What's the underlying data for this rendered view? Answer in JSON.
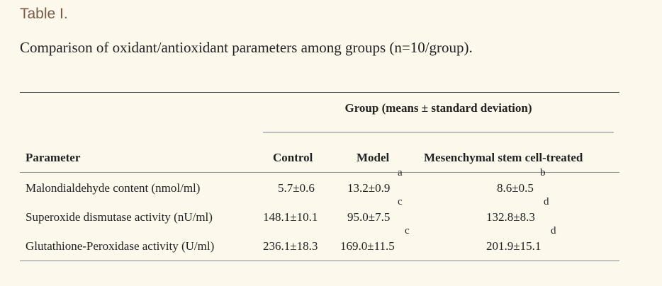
{
  "table_label": "Table I.",
  "caption": "Comparison of oxidant/antioxidant parameters among groups (n=10/group).",
  "group_header": "Group (means ± standard deviation)",
  "columns": [
    "Parameter",
    "Control",
    "Model",
    "Mesenchymal stem cell-treated"
  ],
  "rows": [
    {
      "parameter": "Malondialdehyde content (nmol/ml)",
      "control": "5.7±0.6",
      "model": "13.2±0.9",
      "model_sup": "a",
      "treated": "8.6±0.5",
      "treated_sup": "b"
    },
    {
      "parameter": "Superoxide dismutase activity (nU/ml)",
      "control": "148.1±10.1",
      "model": "95.0±7.5",
      "model_sup": "c",
      "treated": "132.8±8.3",
      "treated_sup": "d"
    },
    {
      "parameter": "Glutathione-Peroxidase activity (U/ml)",
      "control": "236.1±18.3",
      "model": "169.0±11.5",
      "model_sup": "c",
      "treated": "201.9±15.1",
      "treated_sup": "d"
    }
  ]
}
